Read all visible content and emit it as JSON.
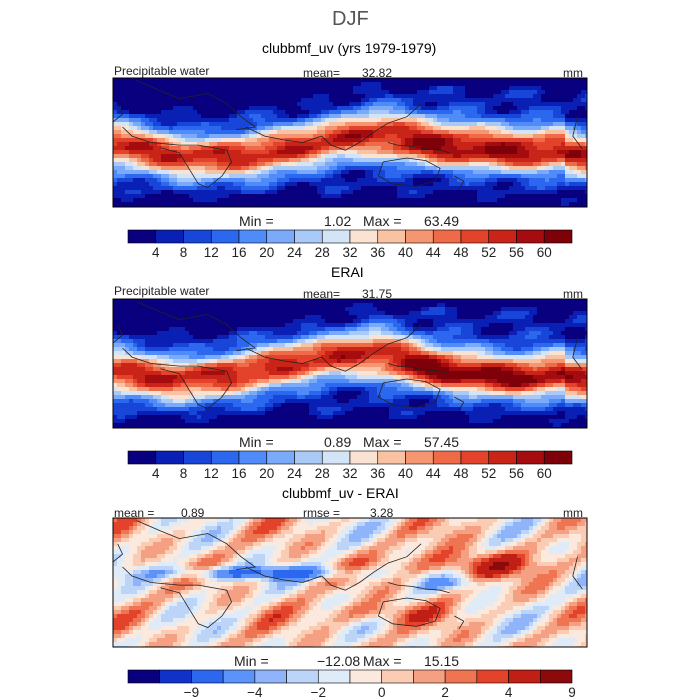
{
  "figure": {
    "season": "DJF",
    "units": "mm"
  },
  "colors": {
    "precip_scale": [
      "#08007f",
      "#0a1fb3",
      "#1746d9",
      "#2c67f0",
      "#4f8cfa",
      "#7baafb",
      "#a9c9f7",
      "#d4e4f7",
      "#fbe3d3",
      "#f9c3a3",
      "#f59673",
      "#ef6a49",
      "#e3432a",
      "#c92418",
      "#a50c0f",
      "#7e0009"
    ],
    "diff_scale": [
      "#08007f",
      "#0f33c8",
      "#2c67f0",
      "#5b93fb",
      "#8fb4f9",
      "#bcd4f8",
      "#e0ebf8",
      "#fbe9de",
      "#f9ccb3",
      "#f5a083",
      "#ee7452",
      "#e3432a",
      "#c01f15",
      "#8d0a0c"
    ]
  },
  "chart_data": [
    {
      "type": "heatmap",
      "title": "clubbmf_uv (yrs 1979-1979)",
      "field_label": "Precipitable water",
      "mean_label": "mean=",
      "mean_value": "32.82",
      "units": "mm",
      "min_label": "Min =",
      "min_value": "1.02",
      "max_label": "Max =",
      "max_value": "63.49",
      "colorbar_levels": [
        4,
        8,
        12,
        16,
        20,
        24,
        28,
        32,
        36,
        40,
        44,
        48,
        52,
        56,
        60
      ],
      "colorbar_ticks": [
        "4",
        "8",
        "12",
        "16",
        "20",
        "24",
        "28",
        "32",
        "36",
        "40",
        "44",
        "48",
        "52",
        "56",
        "60"
      ]
    },
    {
      "type": "heatmap",
      "title": "ERAI",
      "field_label": "Precipitable water",
      "mean_label": "mean=",
      "mean_value": "31.75",
      "units": "mm",
      "min_label": "Min =",
      "min_value": "0.89",
      "max_label": "Max =",
      "max_value": "57.45",
      "colorbar_levels": [
        4,
        8,
        12,
        16,
        20,
        24,
        28,
        32,
        36,
        40,
        44,
        48,
        52,
        56,
        60
      ],
      "colorbar_ticks": [
        "4",
        "8",
        "12",
        "16",
        "20",
        "24",
        "28",
        "32",
        "36",
        "40",
        "44",
        "48",
        "52",
        "56",
        "60"
      ]
    },
    {
      "type": "heatmap",
      "title": "clubbmf_uv - ERAI",
      "mean_label": "mean =",
      "mean_value": "0.89",
      "rmse_label": "rmse =",
      "rmse_value": "3.28",
      "units": "mm",
      "min_label": "Min =",
      "min_value": "−12.08",
      "max_label": "Max =",
      "max_value": "15.15",
      "colorbar_levels": [
        -12,
        -9,
        -6,
        -4,
        -3,
        -2,
        -1,
        0,
        1,
        2,
        3,
        4,
        6,
        9,
        12
      ],
      "colorbar_ticks": [
        "−9",
        "−4",
        "−2",
        "0",
        "2",
        "4",
        "9"
      ]
    }
  ]
}
